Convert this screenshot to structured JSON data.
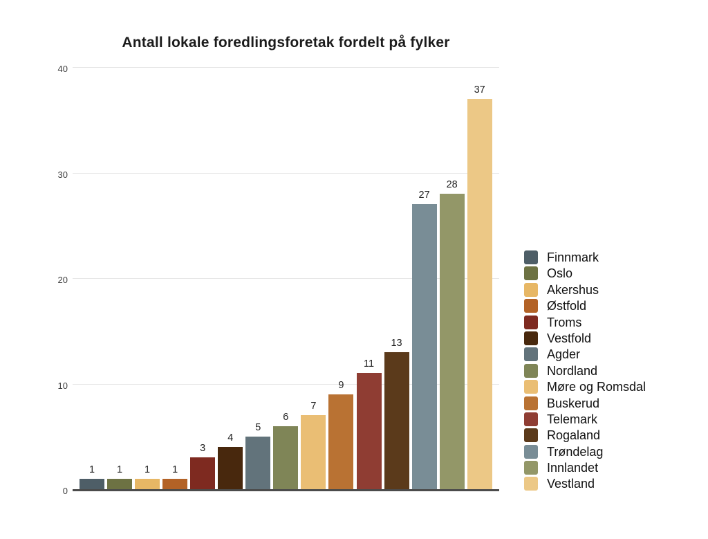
{
  "page": {
    "background": "#ffffff"
  },
  "chart_data": {
    "type": "bar",
    "title": "Antall lokale foredlingsforetak fordelt på fylker",
    "categories": [
      "Finnmark",
      "Oslo",
      "Akershus",
      "Østfold",
      "Troms",
      "Vestfold",
      "Agder",
      "Nordland",
      "Møre og Romsdal",
      "Buskerud",
      "Telemark",
      "Rogaland",
      "Trøndelag",
      "Innlandet",
      "Vestland"
    ],
    "values": [
      1,
      1,
      1,
      1,
      3,
      4,
      5,
      6,
      7,
      9,
      11,
      13,
      27,
      28,
      37
    ],
    "colors": [
      "#4e5e67",
      "#6d7243",
      "#e7b765",
      "#b36226",
      "#7e2a20",
      "#48280d",
      "#62737b",
      "#7f8557",
      "#eabe74",
      "#b97233",
      "#8f3d33",
      "#5b3a1b",
      "#798d96",
      "#939768",
      "#ecc886"
    ],
    "xlabel": "",
    "ylabel": "",
    "ylim": [
      0,
      40
    ],
    "yticks": [
      0,
      10,
      20,
      30,
      40
    ],
    "grid": true,
    "bar_value_labels_shown": true,
    "legend_position": "right"
  },
  "style_colors": {
    "axis_line": "#4b4b4b",
    "gridline": "#e7e7e7",
    "title_text": "#1c1c1c",
    "tick_text": "#3f3f3f",
    "value_label_text": "#1f1f1f",
    "legend_text": "#101010",
    "background": "#ffffff"
  }
}
